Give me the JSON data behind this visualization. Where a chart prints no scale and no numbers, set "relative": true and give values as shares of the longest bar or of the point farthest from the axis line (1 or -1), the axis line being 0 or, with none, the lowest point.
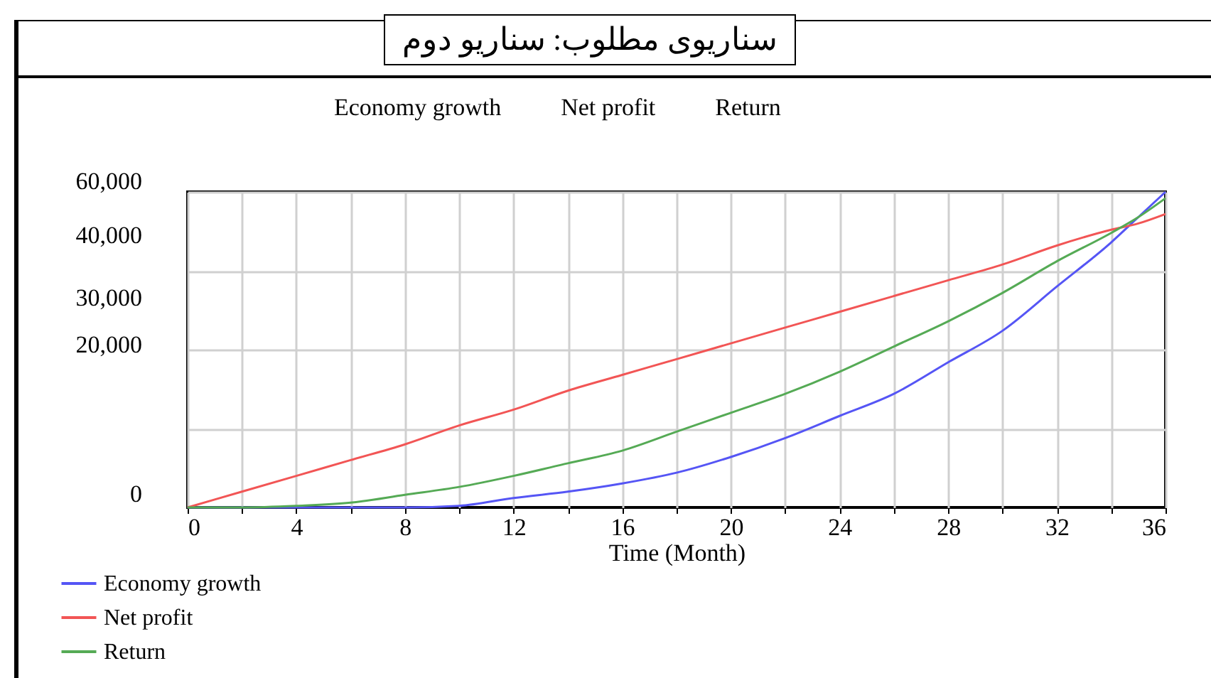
{
  "chart_data": {
    "type": "line",
    "title": "سناریوی مطلوب: سناریو دوم",
    "xlabel": "Time (Month)",
    "relative": true,
    "annotations": [
      "60,000",
      "40,000",
      "30,000",
      "20,000",
      "0"
    ],
    "x": [
      0,
      2,
      4,
      6,
      8,
      10,
      12,
      14,
      16,
      18,
      20,
      22,
      24,
      26,
      28,
      30,
      32,
      34,
      35,
      36
    ],
    "xlim": [
      0,
      36
    ],
    "xticks": [
      0,
      {
        "value": 2,
        "label": null
      },
      4,
      {
        "value": 6,
        "label": null
      },
      8,
      {
        "value": 10,
        "label": null
      },
      12,
      {
        "value": 14,
        "label": null
      },
      16,
      {
        "value": 18,
        "label": null
      },
      20,
      {
        "value": 22,
        "label": null
      },
      24,
      {
        "value": 26,
        "label": null
      },
      28,
      {
        "value": 30,
        "label": null
      },
      32,
      {
        "value": 34,
        "label": null
      },
      36
    ],
    "series": [
      {
        "name": "Economy growth",
        "color": "#5555f5",
        "values": [
          0,
          0,
          0,
          0,
          0,
          0.005,
          0.03,
          0.05,
          0.076,
          0.11,
          0.16,
          0.22,
          0.29,
          0.36,
          0.46,
          0.56,
          0.7,
          0.84,
          0.92,
          1
        ]
      },
      {
        "name": "Net profit",
        "color": "#f25555",
        "values": [
          0,
          0.05,
          0.1,
          0.15,
          0.2,
          0.26,
          0.31,
          0.37,
          0.42,
          0.47,
          0.52,
          0.57,
          0.62,
          0.67,
          0.72,
          0.77,
          0.83,
          0.88,
          0.9,
          0.93
        ]
      },
      {
        "name": "Return",
        "color": "#55aa55",
        "values": [
          0,
          0,
          0.005,
          0.015,
          0.04,
          0.065,
          0.1,
          0.14,
          0.18,
          0.24,
          0.3,
          0.36,
          0.43,
          0.51,
          0.59,
          0.68,
          0.78,
          0.87,
          0.92,
          0.98
        ]
      }
    ],
    "grid": true,
    "legend": "bottom",
    "marker": "none",
    "line_style": "solid"
  }
}
